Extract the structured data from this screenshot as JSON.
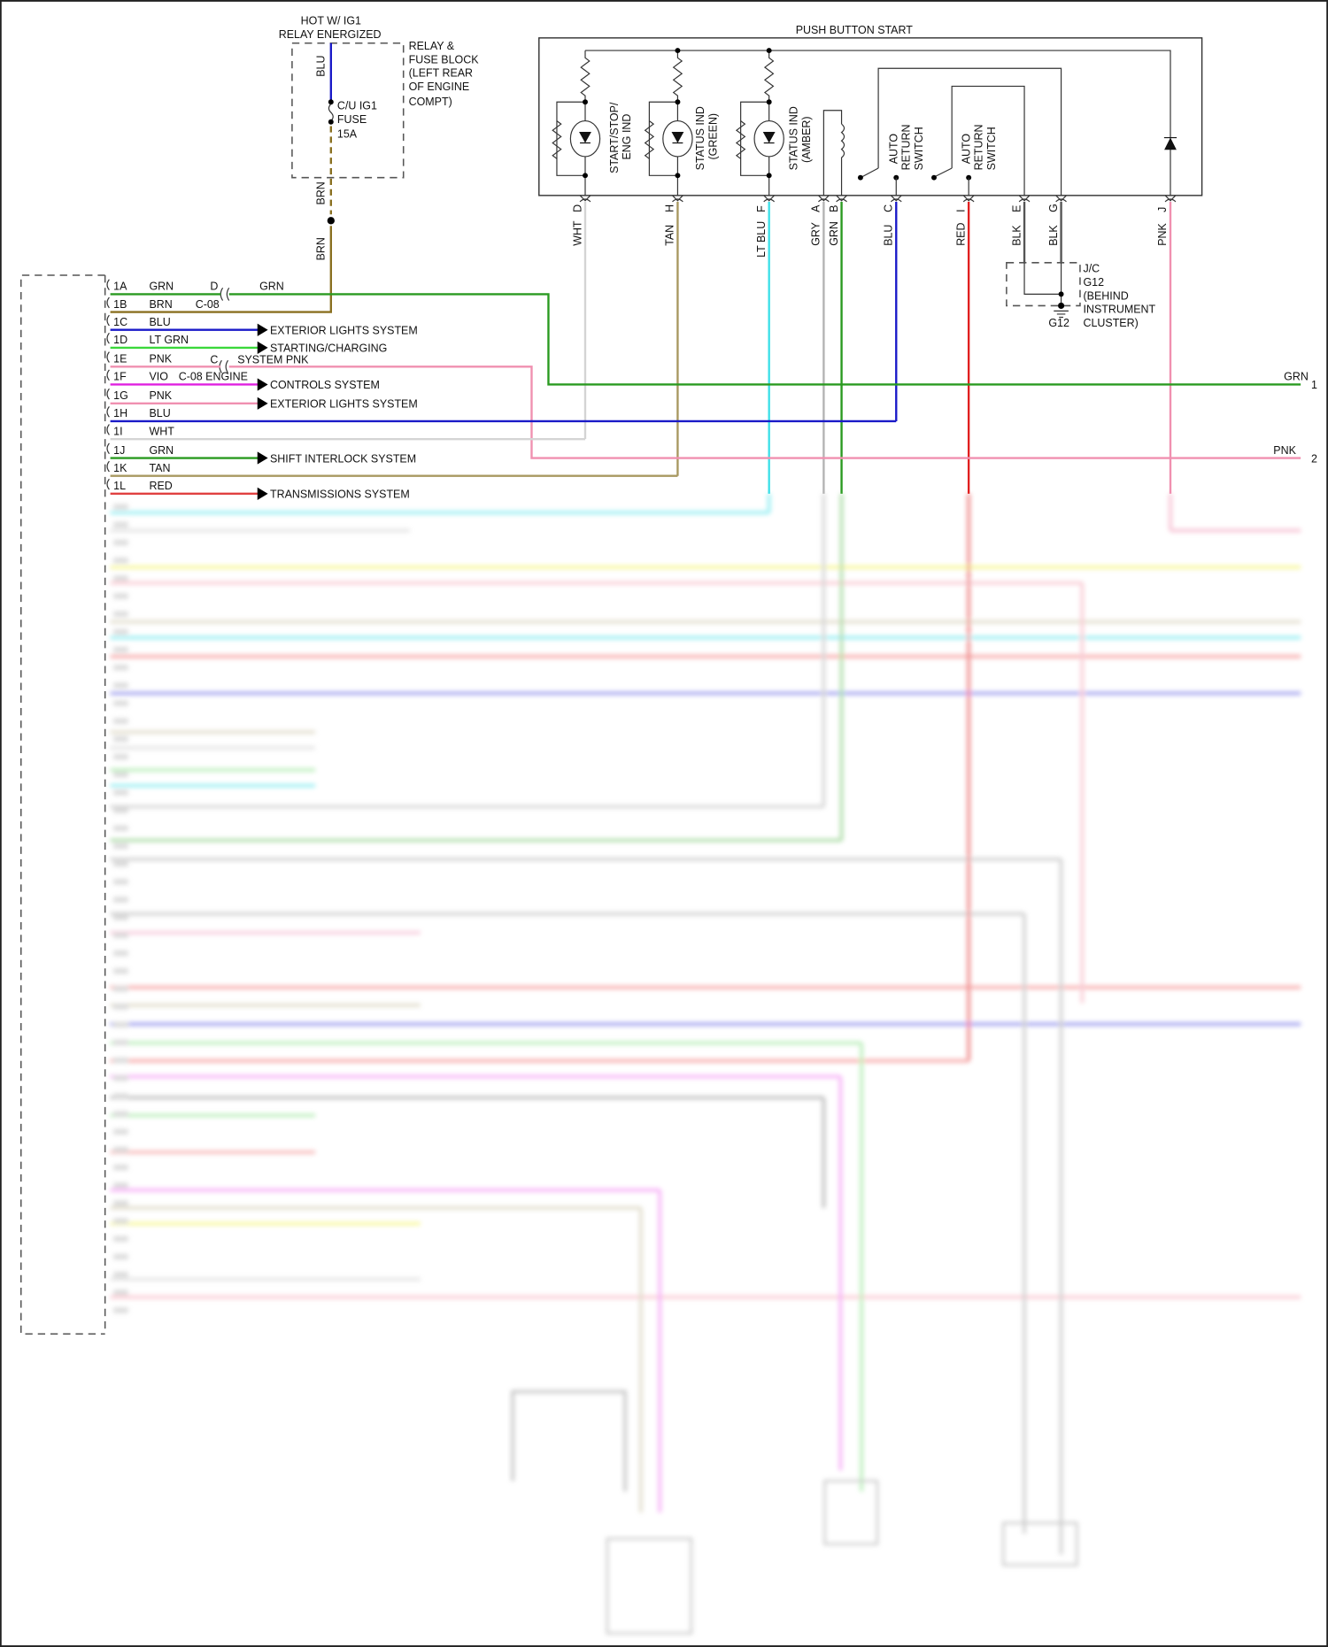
{
  "relay": {
    "hot_line1": "HOT W/ IG1",
    "hot_line2": "RELAY ENERGIZED",
    "block_lines": [
      "RELAY &",
      "FUSE BLOCK",
      "(LEFT REAR",
      "OF ENGINE",
      "COMPT)"
    ],
    "fuse_lines": [
      "C/U IG1",
      "FUSE",
      "15A"
    ],
    "wire_top": "BLU",
    "wire_mid": "BRN",
    "wire_low": "BRN"
  },
  "connector": {
    "rows": [
      {
        "pin": "1A",
        "color": "GRN",
        "hex": "#2a9a20"
      },
      {
        "pin": "1B",
        "color": "BRN",
        "hex": "#8a7020"
      },
      {
        "pin": "1C",
        "color": "BLU",
        "hex": "#1a1ac8",
        "dest": "EXTERIOR LIGHTS SYSTEM"
      },
      {
        "pin": "1D",
        "color": "LT GRN",
        "hex": "#3ad83a",
        "dest": "STARTING/CHARGING"
      },
      {
        "pin": "1E",
        "color": "PNK",
        "hex": "#f090b0"
      },
      {
        "pin": "1F",
        "color": "VIO",
        "hex": "#e020e0",
        "dest": "CONTROLS SYSTEM"
      },
      {
        "pin": "1G",
        "color": "PNK",
        "hex": "#f090b0",
        "dest": "EXTERIOR LIGHTS SYSTEM"
      },
      {
        "pin": "1H",
        "color": "BLU",
        "hex": "#1a1ac8"
      },
      {
        "pin": "1I",
        "color": "WHT",
        "hex": "#d4d4d4"
      },
      {
        "pin": "1J",
        "color": "GRN",
        "hex": "#2a9a20",
        "dest": "SHIFT INTERLOCK SYSTEM"
      },
      {
        "pin": "1K",
        "color": "TAN",
        "hex": "#a89860"
      },
      {
        "pin": "1L",
        "color": "RED",
        "hex": "#e04040",
        "dest": "TRANSMISSIONS SYSTEM"
      }
    ],
    "c08_d_pin": "D",
    "c08_label": "C-08",
    "c08_d_wire": "GRN",
    "c08_c_pin": "C",
    "system_pnk": "SYSTEM PNK",
    "c08_engine": "C-08 ENGINE"
  },
  "right_edge": [
    {
      "wire": "GRN",
      "num": "1"
    },
    {
      "wire": "PNK",
      "num": "2"
    }
  ],
  "push_button": {
    "title": "PUSH BUTTON START",
    "components": [
      {
        "lines": [
          "START/STOP/",
          "ENG IND"
        ]
      },
      {
        "lines": [
          "STATUS IND",
          "(GREEN)"
        ]
      },
      {
        "lines": [
          "STATUS IND",
          "(AMBER)"
        ]
      },
      {
        "lines": [
          "AUTO",
          "RETURN",
          "SWITCH"
        ]
      },
      {
        "lines": [
          "AUTO",
          "RETURN",
          "SWITCH"
        ]
      }
    ],
    "pins": [
      {
        "pin": "D",
        "wire": "WHT",
        "hex": "#d4d4d4"
      },
      {
        "pin": "H",
        "wire": "TAN",
        "hex": "#a89860"
      },
      {
        "pin": "F",
        "wire": "LT BLU",
        "hex": "#3ee0e8"
      },
      {
        "pin": "A",
        "wire": "GRY",
        "hex": "#b4b4b4"
      },
      {
        "pin": "B",
        "wire": "GRN",
        "hex": "#2a9a20"
      },
      {
        "pin": "C",
        "wire": "BLU",
        "hex": "#1a1ac8"
      },
      {
        "pin": "I",
        "wire": "RED",
        "hex": "#e02020"
      },
      {
        "pin": "E",
        "wire": "BLK",
        "hex": "#555555"
      },
      {
        "pin": "G",
        "wire": "BLK",
        "hex": "#555555"
      },
      {
        "pin": "J",
        "wire": "PNK",
        "hex": "#f090b0"
      }
    ]
  },
  "junction": {
    "lines": [
      "J/C",
      "G12",
      "(BEHIND",
      "INSTRUMENT",
      "CLUSTER)"
    ],
    "ground": "G12"
  }
}
